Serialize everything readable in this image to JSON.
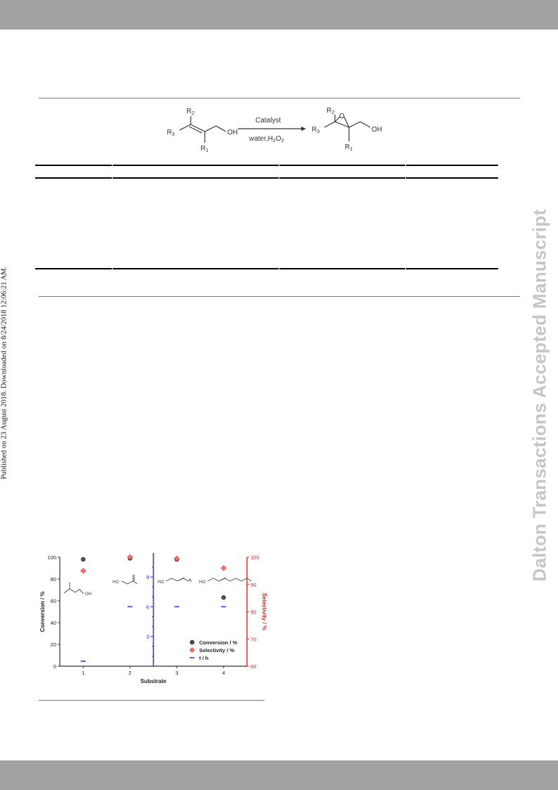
{
  "header_band": {
    "color": "#a3a3a3"
  },
  "footer_band": {
    "color": "#a3a3a3"
  },
  "side_notice": "Published on 23 August 2018. Downloaded on 8/24/2018 12:06:21 AM.",
  "watermark": "Dalton Transactions Accepted Manuscript",
  "scheme": {
    "reactant_labels": [
      "R2",
      "R3",
      "R1",
      "OH"
    ],
    "arrow_top": "Catalyst",
    "arrow_bottom": "water,H2O2",
    "product_labels": [
      "R2",
      "O",
      "R3",
      "R1",
      "OH"
    ]
  },
  "chart_data": {
    "type": "scatter",
    "x": [
      1,
      2,
      3,
      4
    ],
    "xlabel": "Substrate",
    "ylabel_left": "Conversion / %",
    "ylabel_right": "Selectivity / %",
    "ylim_left": [
      0,
      100
    ],
    "ylim_right": [
      60,
      100
    ],
    "ylim_time": [
      0,
      11
    ],
    "yticks_left": [
      "0",
      "20",
      "40",
      "60",
      "80",
      "100"
    ],
    "yticks_right": [
      "60",
      "70",
      "80",
      "90",
      "100"
    ],
    "yticks_time": [
      "3",
      "6",
      "9"
    ],
    "xticks": [
      "1",
      "2",
      "3",
      "4"
    ],
    "series": [
      {
        "name": "Conversion / %",
        "axis": "left",
        "marker": "circle",
        "color": "#444444",
        "values": [
          98,
          99,
          98,
          63
        ]
      },
      {
        "name": "Selectivity / %",
        "axis": "right",
        "marker": "diamond",
        "color": "#e8463f",
        "values": [
          95,
          100,
          99.5,
          96
        ]
      },
      {
        "name": "t / h",
        "axis": "time",
        "marker": "dash",
        "color": "#2f3fd0",
        "values": [
          0.5,
          6,
          6,
          6
        ]
      }
    ],
    "legend_position": "bottom-right",
    "axis_colors": {
      "right": "#e02020",
      "time": "#2828d8"
    },
    "inset_labels": [
      "OH",
      "HO",
      "HO",
      "HO"
    ]
  }
}
